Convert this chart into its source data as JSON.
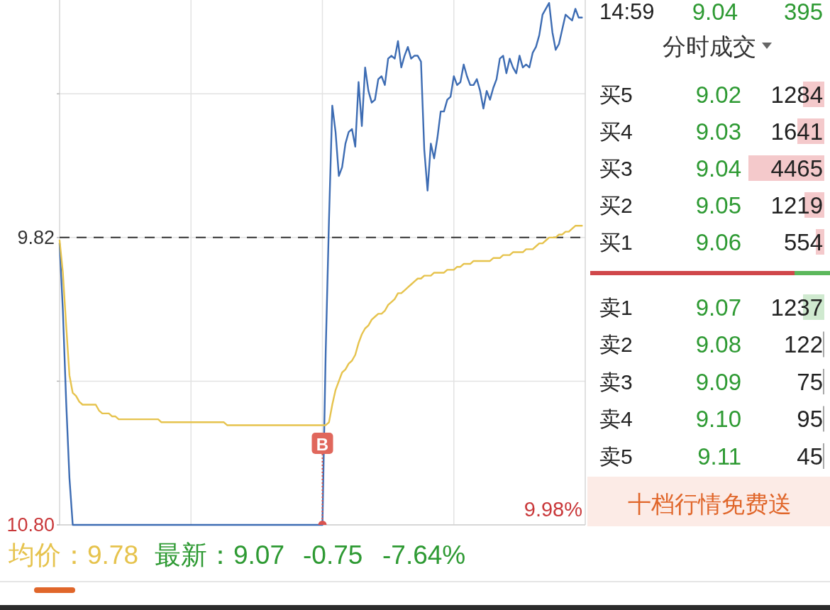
{
  "chart_data": [
    {
      "type": "line",
      "categories": [
        null,
        null,
        null,
        null,
        null,
        null,
        null,
        null,
        null,
        null,
        null,
        null,
        null,
        null,
        null,
        null,
        null,
        null,
        null,
        null,
        null,
        null,
        null,
        null,
        null,
        null,
        null,
        null,
        null,
        null,
        null,
        null,
        null,
        null,
        null,
        null,
        null,
        null,
        null,
        null,
        null,
        null,
        null,
        null,
        null,
        null,
        null,
        null,
        null,
        null,
        null,
        null,
        null,
        null,
        null,
        null,
        null,
        null,
        null,
        null,
        null,
        null,
        null,
        null,
        null,
        null,
        null,
        null,
        null,
        null,
        null,
        null,
        null,
        null,
        null,
        null,
        null,
        null,
        null,
        null,
        null,
        null,
        null,
        null,
        null,
        null,
        null,
        null,
        null,
        null,
        null,
        null,
        null,
        null,
        null,
        null,
        null,
        null,
        null,
        null,
        null,
        null,
        null,
        null,
        null,
        null,
        null,
        null,
        null,
        null,
        null,
        null,
        null,
        null,
        null,
        null,
        null,
        null,
        null,
        null,
        null,
        null,
        null,
        null,
        null,
        null,
        null,
        null,
        null,
        null,
        null,
        null,
        null,
        null,
        null,
        null,
        null,
        null,
        null,
        null,
        null,
        null,
        null,
        null,
        null,
        null,
        null,
        null,
        null,
        null,
        null,
        null,
        null,
        null,
        null,
        null,
        null,
        null,
        null,
        null,
        null
      ],
      "series": [
        {
          "color": "#3d6cb3",
          "values": [
            9.84,
            10.07,
            10.38,
            10.64,
            10.8,
            10.8,
            10.8,
            10.8,
            10.8,
            10.8,
            10.8,
            10.8,
            10.8,
            10.8,
            10.8,
            10.8,
            10.8,
            10.8,
            10.8,
            10.8,
            10.8,
            10.8,
            10.8,
            10.8,
            10.8,
            10.8,
            10.8,
            10.8,
            10.8,
            10.8,
            10.8,
            10.8,
            10.8,
            10.8,
            10.8,
            10.8,
            10.8,
            10.8,
            10.8,
            10.8,
            10.8,
            10.8,
            10.8,
            10.8,
            10.8,
            10.8,
            10.8,
            10.8,
            10.8,
            10.8,
            10.8,
            10.8,
            10.8,
            10.8,
            10.8,
            10.8,
            10.8,
            10.8,
            10.8,
            10.8,
            10.8,
            10.8,
            10.8,
            10.8,
            10.8,
            10.8,
            10.8,
            10.8,
            10.8,
            10.8,
            10.8,
            10.8,
            10.8,
            10.8,
            10.8,
            10.8,
            10.8,
            10.8,
            10.8,
            10.8,
            10.8,
            10.21,
            9.76,
            9.37,
            9.46,
            9.61,
            9.58,
            9.5,
            9.46,
            9.45,
            9.51,
            9.29,
            9.44,
            9.24,
            9.32,
            9.36,
            9.35,
            9.28,
            9.27,
            9.3,
            9.21,
            9.2,
            9.21,
            9.15,
            9.24,
            9.2,
            9.17,
            9.21,
            9.2,
            9.2,
            9.22,
            9.52,
            9.66,
            9.5,
            9.55,
            9.48,
            9.39,
            9.39,
            9.35,
            9.34,
            9.27,
            9.3,
            9.29,
            9.23,
            9.27,
            9.3,
            9.3,
            9.28,
            9.32,
            9.38,
            9.32,
            9.35,
            9.31,
            9.28,
            9.21,
            9.2,
            9.26,
            9.21,
            9.24,
            9.26,
            9.2,
            9.24,
            9.23,
            9.24,
            9.19,
            9.17,
            9.13,
            9.06,
            9.04,
            9.02,
            9.12,
            9.18,
            9.16,
            9.11,
            9.06,
            9.07,
            9.08,
            9.04,
            9.07,
            9.07,
            null
          ]
        },
        {
          "color": "#e6c34d",
          "values": [
            9.83,
            9.94,
            10.12,
            10.29,
            10.35,
            10.36,
            10.38,
            10.39,
            10.39,
            10.39,
            10.39,
            10.39,
            10.41,
            10.42,
            10.42,
            10.42,
            10.43,
            10.43,
            10.44,
            10.44,
            10.44,
            10.44,
            10.44,
            10.44,
            10.44,
            10.44,
            10.44,
            10.44,
            10.44,
            10.44,
            10.44,
            10.45,
            10.45,
            10.45,
            10.45,
            10.45,
            10.45,
            10.45,
            10.45,
            10.45,
            10.45,
            10.45,
            10.45,
            10.45,
            10.45,
            10.45,
            10.45,
            10.45,
            10.45,
            10.45,
            10.45,
            10.46,
            10.46,
            10.46,
            10.46,
            10.46,
            10.46,
            10.46,
            10.46,
            10.46,
            10.46,
            10.46,
            10.46,
            10.46,
            10.46,
            10.46,
            10.46,
            10.46,
            10.46,
            10.46,
            10.46,
            10.46,
            10.46,
            10.46,
            10.46,
            10.46,
            10.46,
            10.46,
            10.46,
            10.46,
            10.46,
            10.46,
            10.45,
            10.39,
            10.34,
            10.31,
            10.28,
            10.27,
            10.25,
            10.24,
            10.22,
            10.18,
            10.15,
            10.13,
            10.12,
            10.1,
            10.09,
            10.08,
            10.08,
            10.07,
            10.05,
            10.04,
            10.03,
            10.01,
            10.01,
            10.0,
            9.99,
            9.98,
            9.97,
            9.96,
            9.96,
            9.95,
            9.95,
            9.95,
            9.94,
            9.94,
            9.94,
            9.94,
            9.93,
            9.93,
            9.93,
            9.92,
            9.92,
            9.91,
            9.91,
            9.91,
            9.9,
            9.9,
            9.9,
            9.9,
            9.9,
            9.9,
            9.89,
            9.89,
            9.89,
            9.88,
            9.88,
            9.88,
            9.87,
            9.87,
            9.87,
            9.87,
            9.86,
            9.86,
            9.86,
            9.85,
            9.84,
            9.84,
            9.83,
            9.82,
            9.82,
            9.82,
            9.81,
            9.81,
            9.8,
            9.8,
            9.79,
            9.78,
            9.78,
            9.78,
            null
          ]
        }
      ],
      "ylim": [
        10.8,
        9.01
      ],
      "yticks": [
        {
          "value": 10.8,
          "label": "10.80"
        },
        {
          "value": 10.31,
          "label": null
        },
        {
          "value": 9.82,
          "label": "9.82"
        },
        {
          "value": 9.33,
          "label": null
        }
      ],
      "grid": true,
      "ref_lines": [
        {
          "axis": "y",
          "value": 9.82,
          "color": "#333333",
          "line_style": "dashed"
        }
      ],
      "annotations": [
        "B",
        "9.98%",
        "均价：9.78",
        "最新：9.07",
        "-0.75",
        "-7.64%"
      ]
    },
    {
      "type": "other",
      "categories": [
        "买5",
        "买4",
        "买3",
        "买2",
        "买1",
        "卖1",
        "卖2",
        "卖3",
        "卖4",
        "卖5"
      ],
      "series": [
        {
          "values": [
            9.02,
            9.03,
            9.04,
            9.05,
            9.06,
            9.07,
            9.08,
            9.09,
            9.1,
            9.11
          ],
          "value_labels": [
            "9.02",
            "9.03",
            "9.04",
            "9.05",
            "9.06",
            "9.07",
            "9.08",
            "9.09",
            "9.10",
            "9.11"
          ]
        },
        {
          "values": [
            1284,
            1641,
            4465,
            1219,
            554,
            1237,
            122,
            75,
            95,
            45
          ]
        }
      ],
      "data_labels": true,
      "annotations": [
        "分时成交",
        "14:59",
        "9.04",
        "395",
        "十档行情免费送"
      ]
    }
  ]
}
